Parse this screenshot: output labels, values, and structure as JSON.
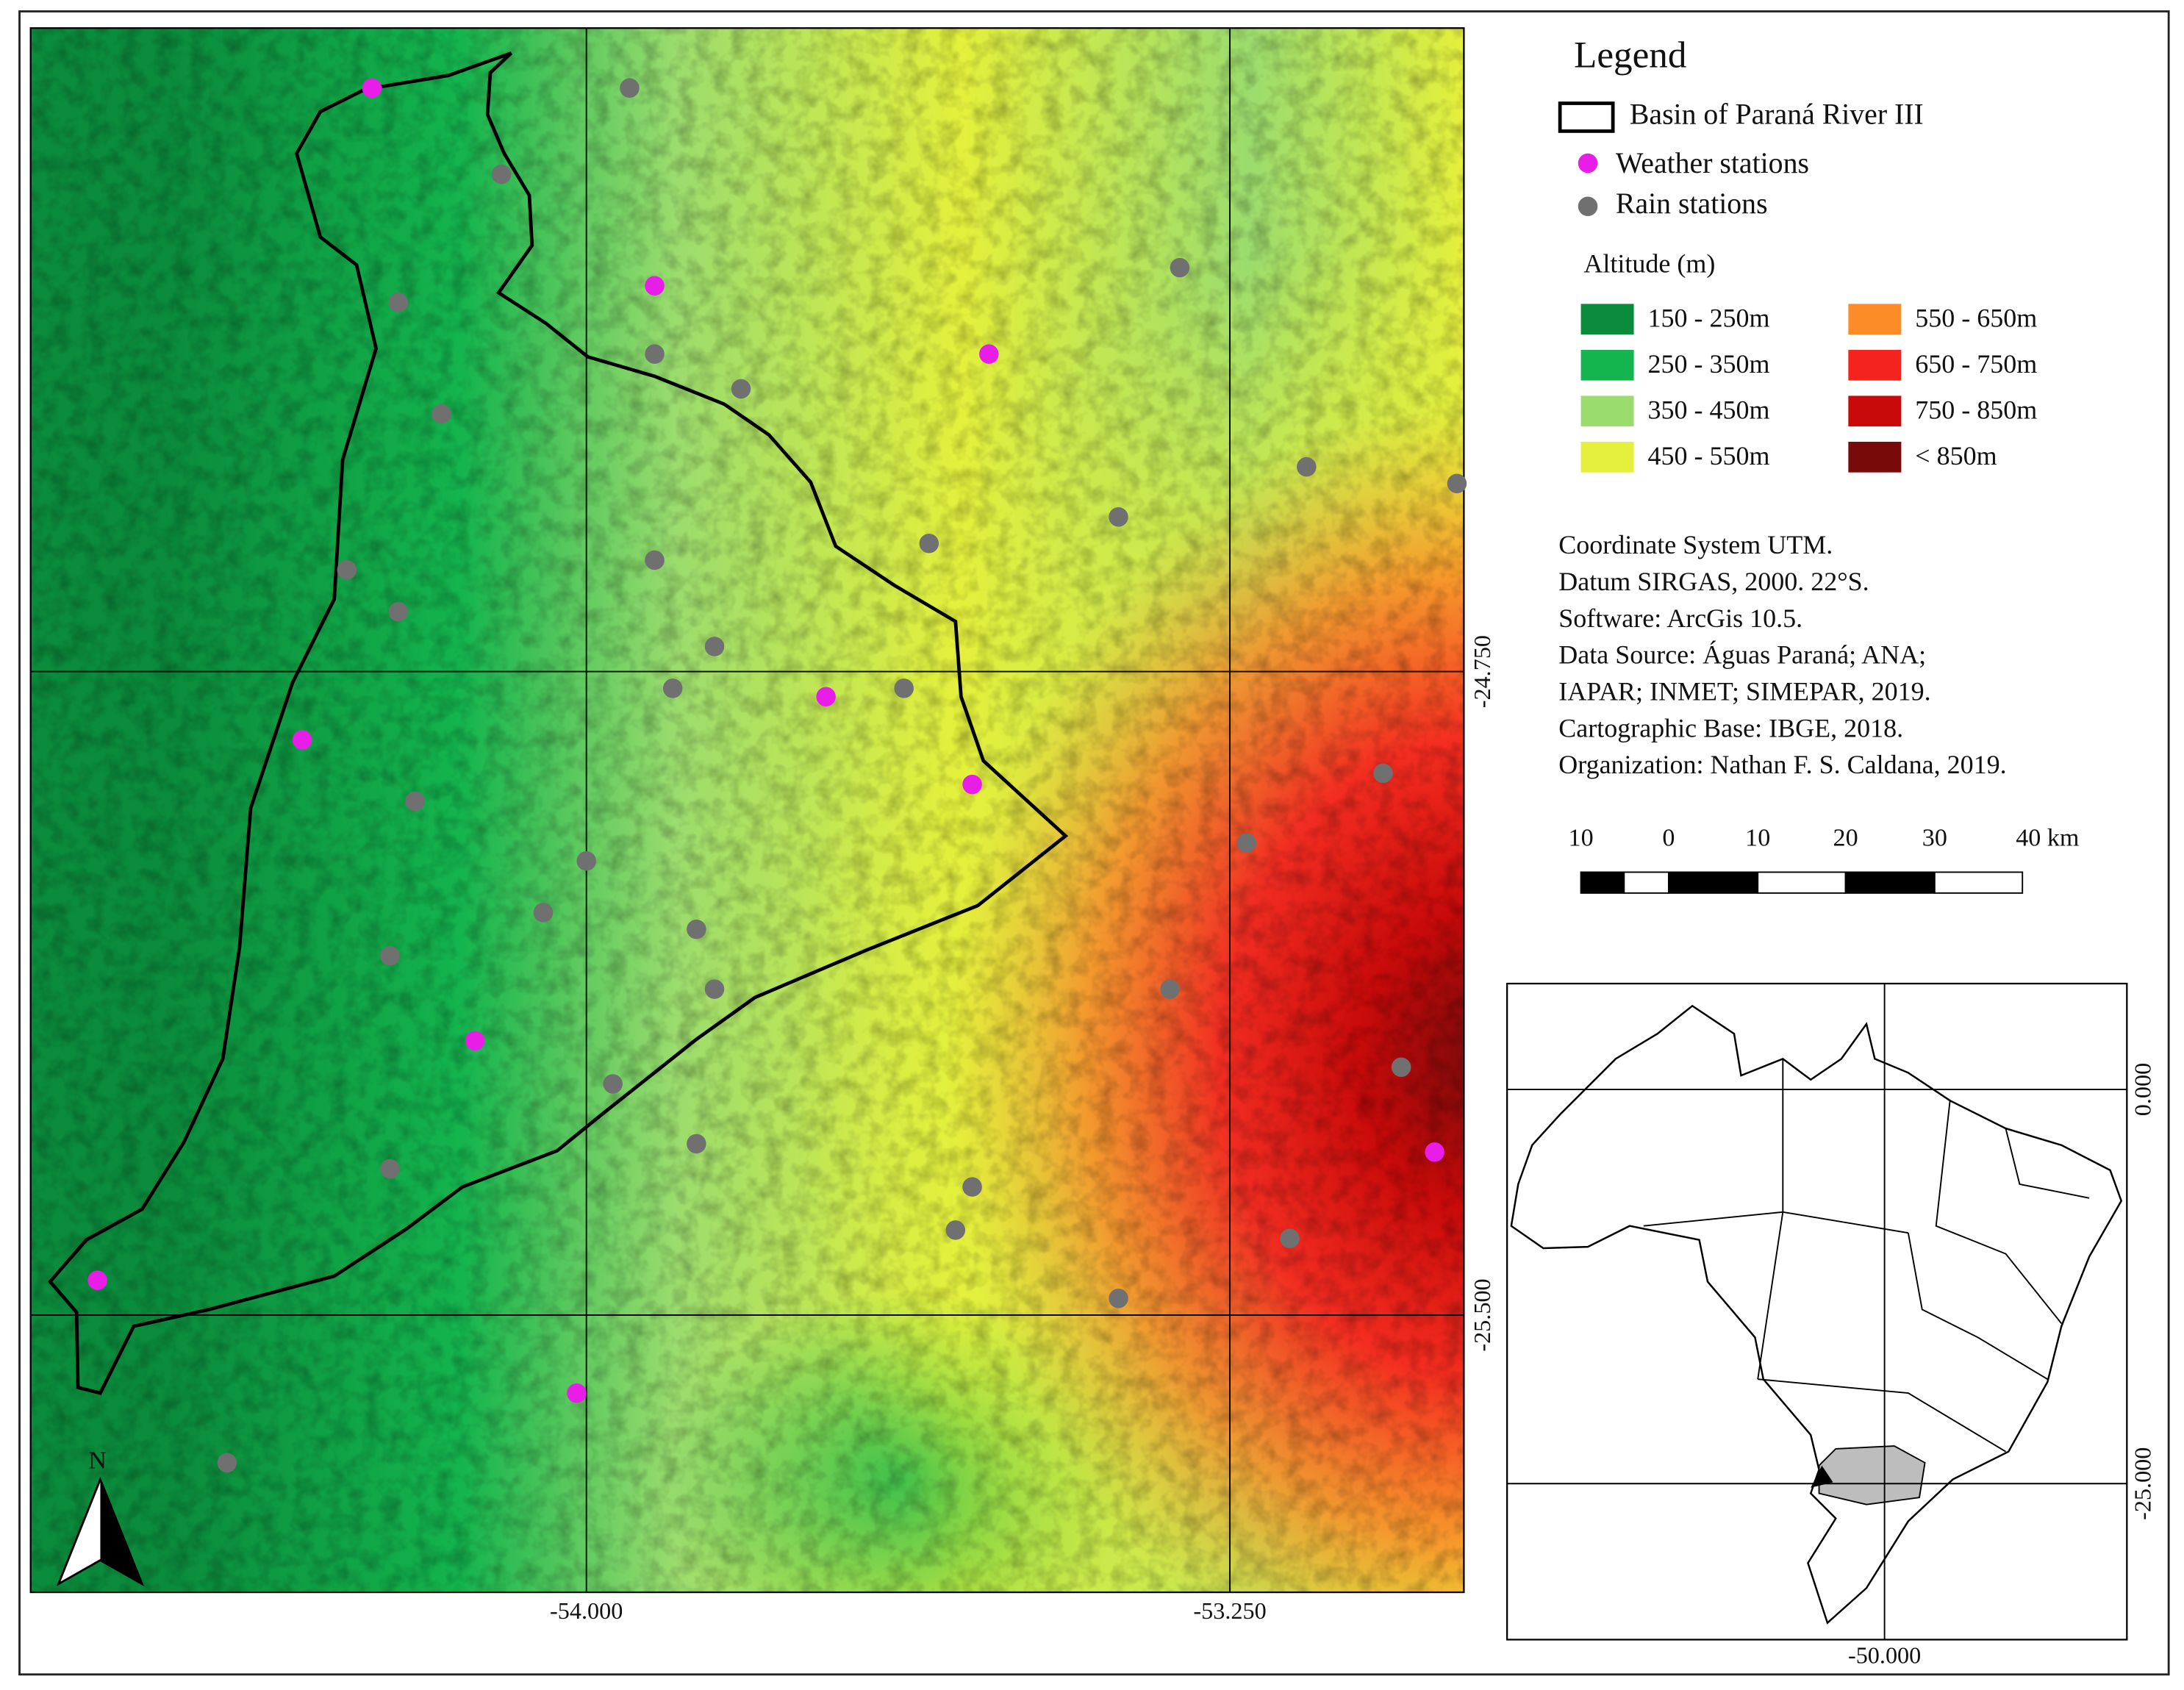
{
  "legend": {
    "title": "Legend",
    "basin": "Basin of Paraná River III",
    "weather": "Weather stations",
    "rain": "Rain stations",
    "altitude_title": "Altitude (m)",
    "classes": [
      {
        "label": "150 - 250m",
        "color": "#0b8c3c"
      },
      {
        "label": "250 - 350m",
        "color": "#14b44e"
      },
      {
        "label": "350 - 450m",
        "color": "#9bdc6e"
      },
      {
        "label": "450 - 550m",
        "color": "#e4f03c"
      },
      {
        "label": "550 - 650m",
        "color": "#fb8c28"
      },
      {
        "label": "650 - 750m",
        "color": "#f5231e"
      },
      {
        "label": "750 - 850m",
        "color": "#c80a0a"
      },
      {
        "label": "< 850m",
        "color": "#780a0a"
      }
    ]
  },
  "info": [
    "Coordinate System UTM.",
    "Datum SIRGAS, 2000. 22°S.",
    "Software: ArcGis 10.5.",
    "Data Source: Águas Paraná; ANA;",
    "IAPAR; INMET; SIMEPAR, 2019.",
    "Cartographic Base: IBGE, 2018.",
    "Organization: Nathan F. S. Caldana, 2019."
  ],
  "scale_bar": {
    "labels": [
      "10",
      "0",
      "10",
      "20",
      "30",
      "40 km"
    ]
  },
  "map": {
    "x_labels": [
      "-54.000",
      "-53.250"
    ],
    "y_labels": [
      "-24.750",
      "-25.500"
    ]
  },
  "inset": {
    "x_labels": [
      "-50.000"
    ],
    "y_labels": [
      "0.000",
      "-25.000"
    ]
  },
  "north": "N"
}
